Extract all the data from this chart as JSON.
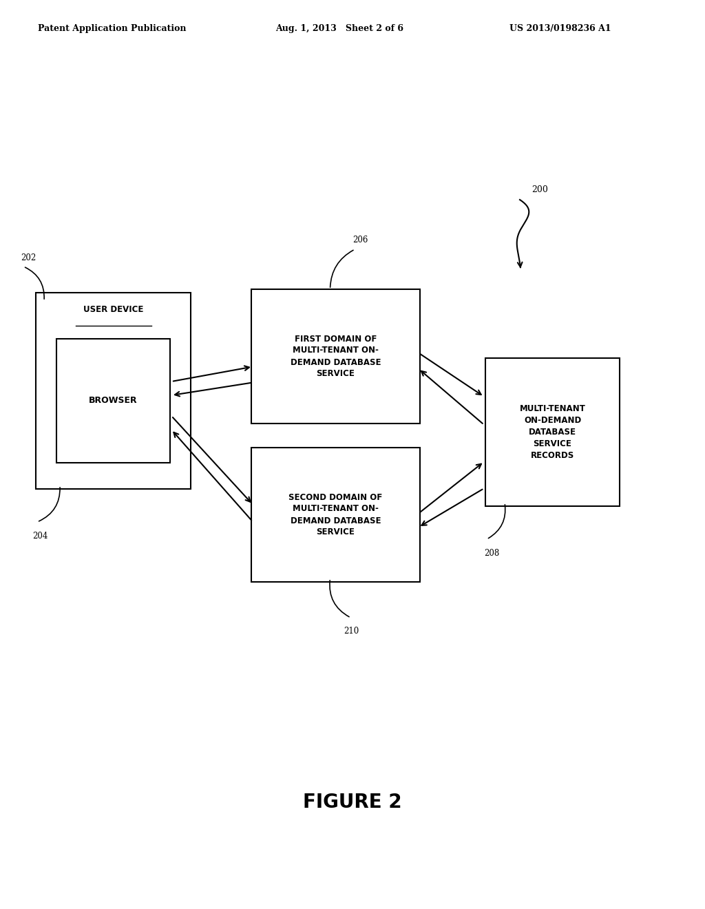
{
  "bg_color": "#ffffff",
  "header_left": "Patent Application Publication",
  "header_mid": "Aug. 1, 2013   Sheet 2 of 6",
  "header_right": "US 2013/0198236 A1",
  "figure_label": "FIGURE 2",
  "ref_200": "200",
  "ref_202": "202",
  "ref_204": "204",
  "ref_206": "206",
  "ref_208": "208",
  "ref_210": "210",
  "label_user_device": "USER DEVICE",
  "label_browser": "BROWSER",
  "label_first_domain": "FIRST DOMAIN OF\nMULTI-TENANT ON-\nDEMAND DATABASE\nSERVICE",
  "label_second_domain": "SECOND DOMAIN OF\nMULTI-TENANT ON-\nDEMAND DATABASE\nSERVICE",
  "label_records": "MULTI-TENANT\nON-DEMAND\nDATABASE\nSERVICE\nRECORDS"
}
